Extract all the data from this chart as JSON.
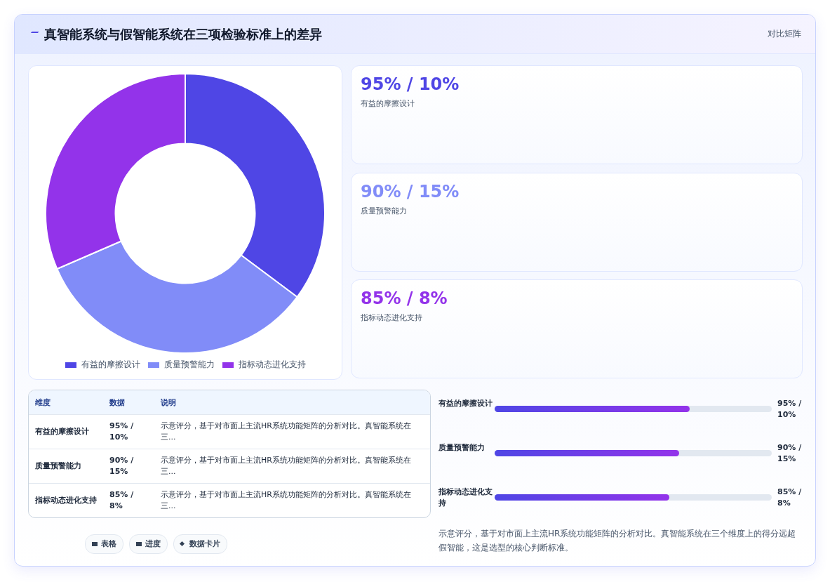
{
  "chart_data": {
    "type": "donut",
    "title": "真智能系统与假智能系统在三项检验标准上的差异",
    "categories": [
      "有益的摩擦设计",
      "质量预警能力",
      "指标动态进化支持"
    ],
    "values": [
      35.2,
      33.3,
      31.5
    ],
    "colors": [
      "#4f46e5",
      "#818cf8",
      "#9333ea"
    ],
    "legend": "bottom",
    "annotations": [
      "对比矩阵",
      "维度",
      "数据",
      "说明",
      "示意评分，基于对市面上主流HR系统功能矩阵的分析对比。真智能系统在三...",
      "示意评分，基于对市面上主流HR系统功能矩阵的分析对比。真智能系统在三...",
      "示意评分，基于对市面上主流HR系统功能矩阵的分析对比。真智能系统在三...",
      "表格",
      "进度",
      "数据卡片",
      "示意评分，基于对市面上主流HR系统功能矩阵的分析对比。真智能系统在三个维度上的得分远超假智能，这是选型的核心判断标准。",
      "95% / 10%",
      "90% / 15%",
      "85% / 8%"
    ]
  }
}
